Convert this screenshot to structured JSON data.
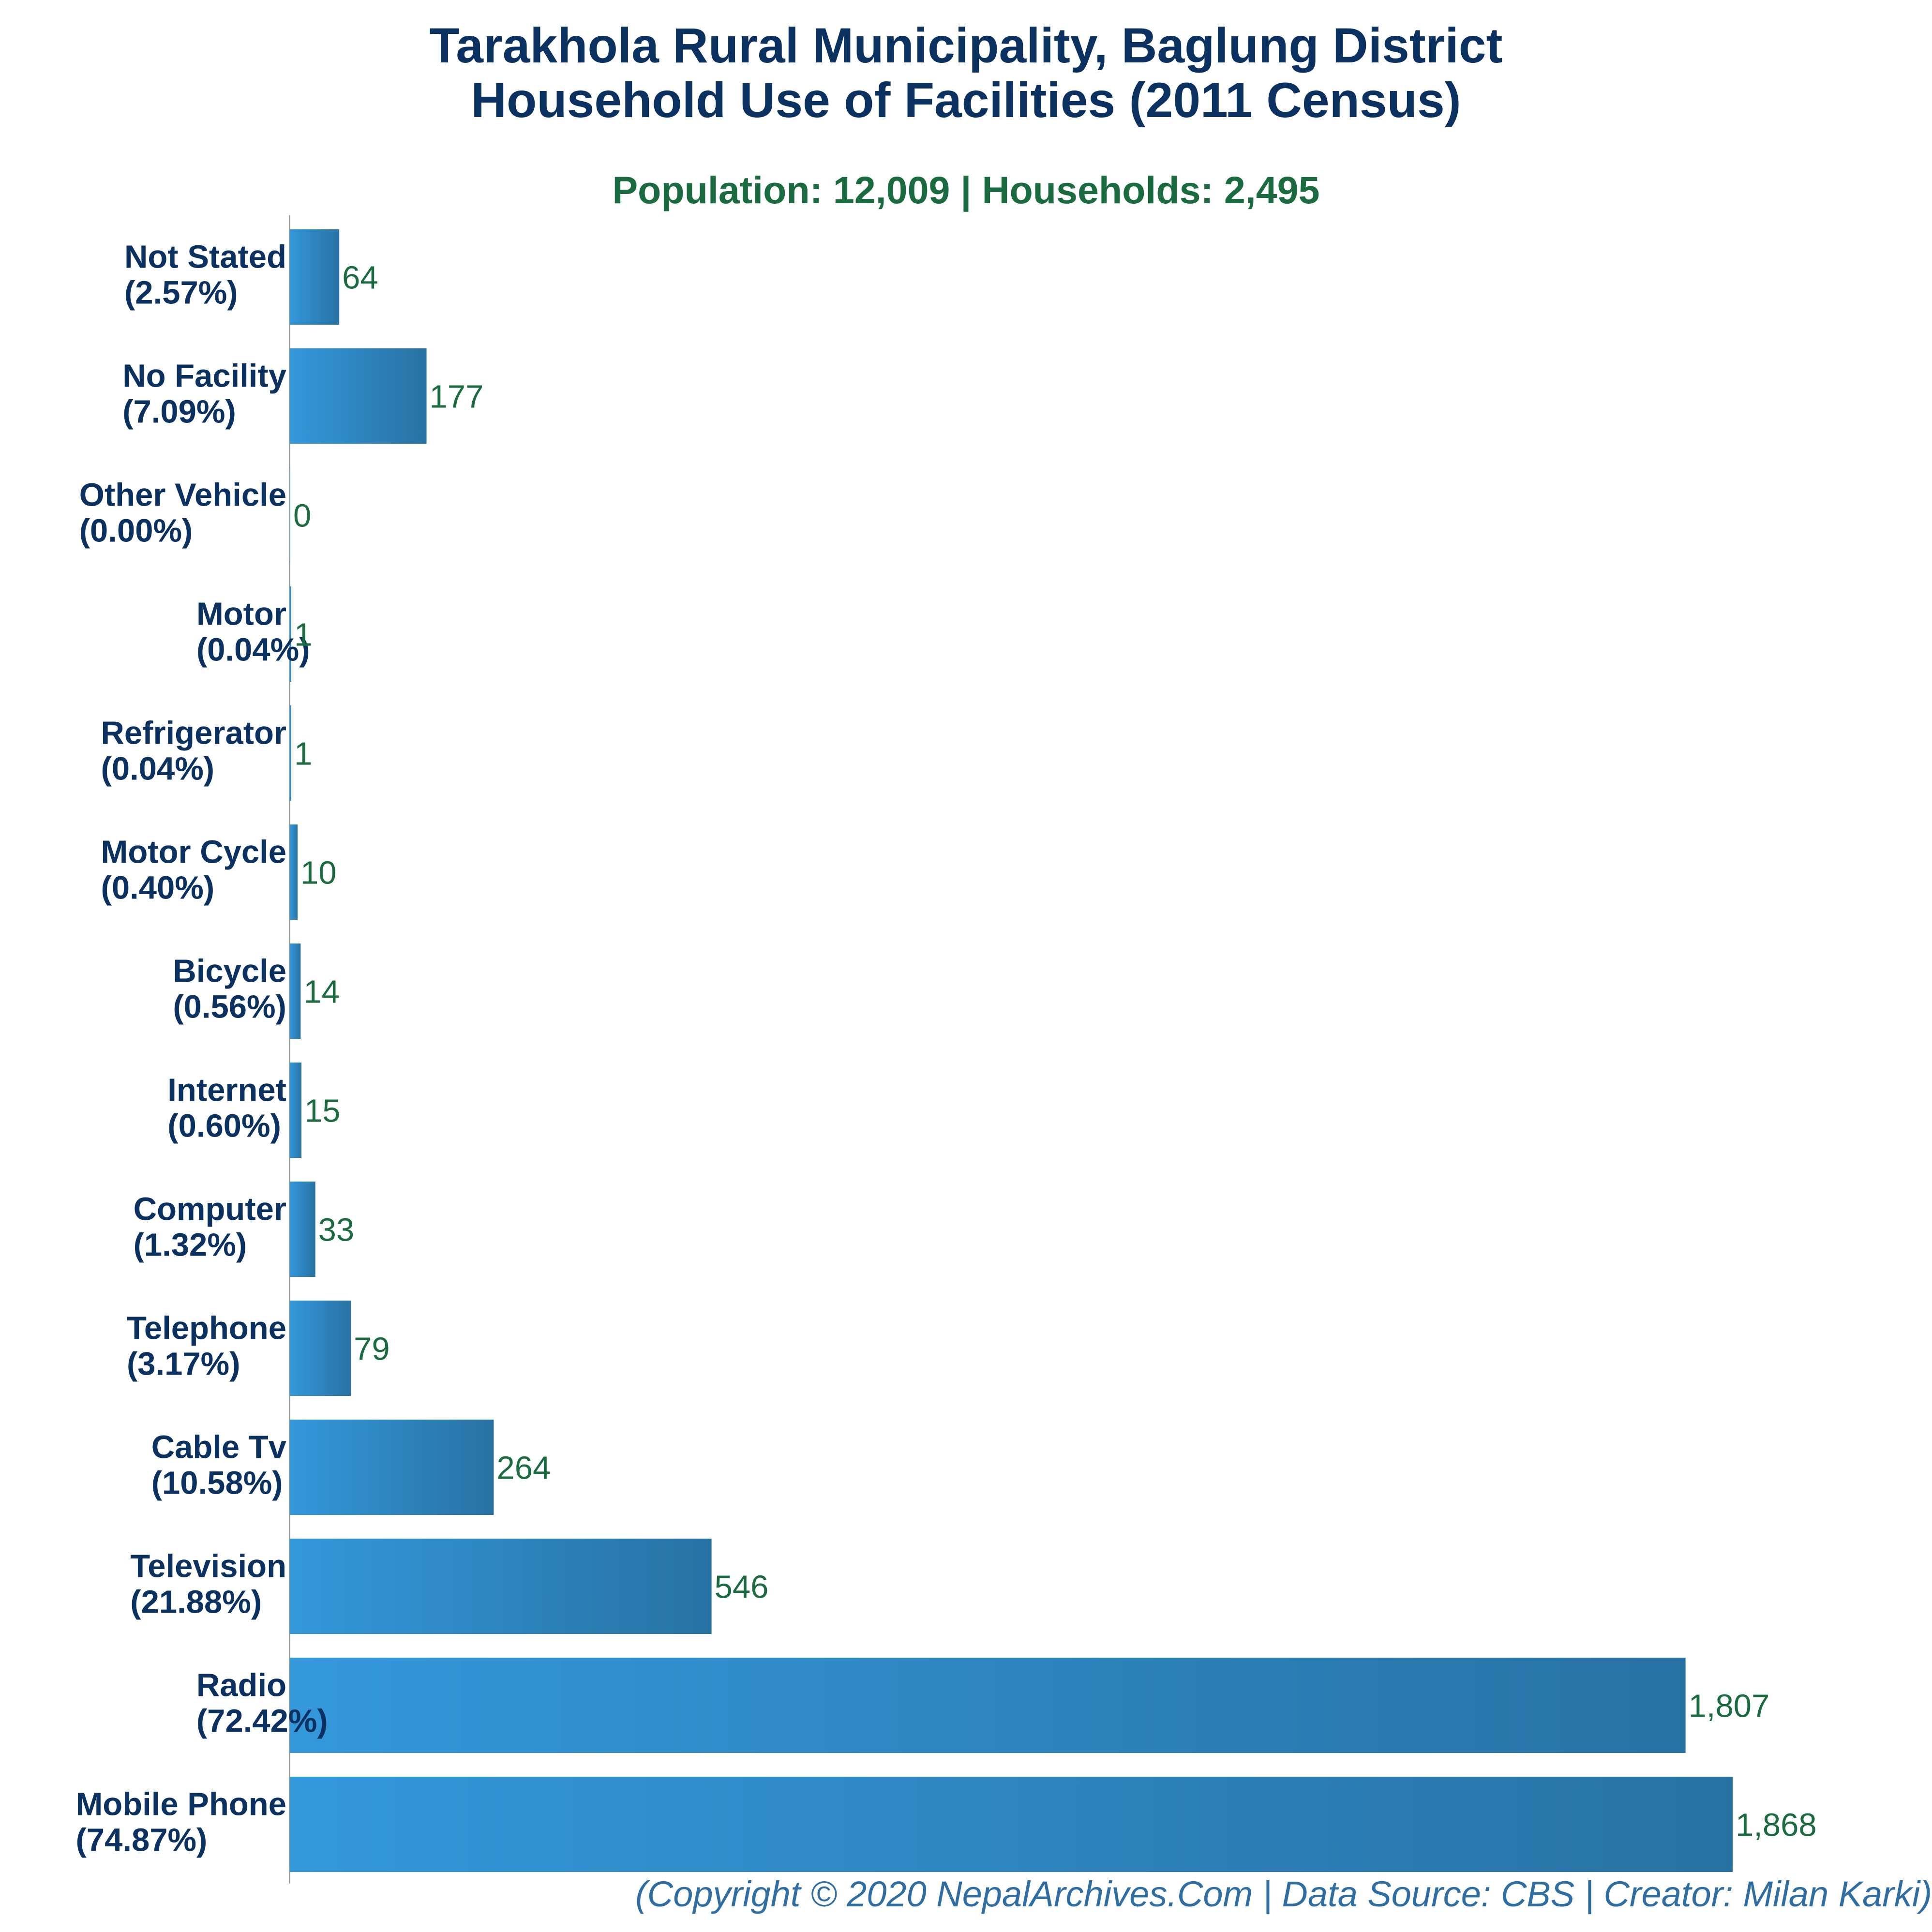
{
  "title_line1": "Tarakhola Rural Municipality, Baglung District",
  "title_line2": "Household Use of Facilities (2011 Census)",
  "subtitle": "Population: 12,009 | Households: 2,495",
  "footer": "(Copyright © 2020 NepalArchives.Com | Data Source: CBS | Creator: Milan Karki)",
  "colors": {
    "bar_light": "#3498db",
    "bar_dark": "#2872a3",
    "value_text": "#1a6b3f",
    "label_text": "#0b3161"
  },
  "chart_data": {
    "type": "bar",
    "orientation": "horizontal",
    "categories": [
      "Not Stated",
      "No Facility",
      "Other Vehicle",
      "Motor",
      "Refrigerator",
      "Motor Cycle",
      "Bicycle",
      "Internet",
      "Computer",
      "Telephone",
      "Cable Tv",
      "Television",
      "Radio",
      "Mobile Phone"
    ],
    "percent_labels": [
      "(2.57%)",
      "(7.09%)",
      "(0.00%)",
      "(0.04%)",
      "(0.04%)",
      "(0.40%)",
      "(0.56%)",
      "(0.60%)",
      "(1.32%)",
      "(3.17%)",
      "(10.58%)",
      "(21.88%)",
      "(72.42%)",
      "(74.87%)"
    ],
    "values": [
      64,
      177,
      0,
      1,
      1,
      10,
      14,
      15,
      33,
      79,
      264,
      546,
      1807,
      1868
    ],
    "value_labels": [
      "64",
      "177",
      "0",
      "1",
      "1",
      "10",
      "14",
      "15",
      "33",
      "79",
      "264",
      "546",
      "1,807",
      "1,868"
    ],
    "xlim": [
      0,
      1868
    ],
    "grid": false
  }
}
